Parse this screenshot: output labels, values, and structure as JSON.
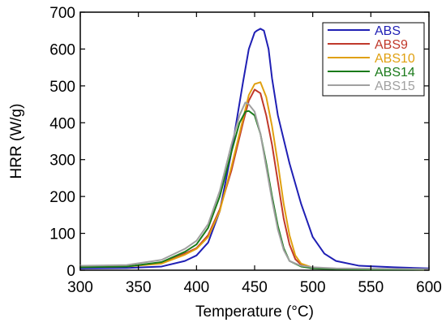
{
  "chart_data": {
    "type": "line",
    "title": "",
    "xlabel": "Temperature (°C)",
    "ylabel": "HRR (W/g)",
    "xlim": [
      300,
      600
    ],
    "ylim": [
      0,
      700
    ],
    "xticks": [
      "300",
      "350",
      "400",
      "450",
      "500",
      "550",
      "600"
    ],
    "yticks": [
      "0",
      "100",
      "200",
      "300",
      "400",
      "500",
      "600",
      "700"
    ],
    "grid": false,
    "legend_position": "top-right",
    "series": [
      {
        "name": "ABS",
        "color": "#1f1fb4",
        "points": [
          [
            300,
            5
          ],
          [
            340,
            6
          ],
          [
            370,
            10
          ],
          [
            390,
            25
          ],
          [
            400,
            40
          ],
          [
            410,
            75
          ],
          [
            420,
            160
          ],
          [
            430,
            320
          ],
          [
            440,
            510
          ],
          [
            445,
            600
          ],
          [
            450,
            645
          ],
          [
            452,
            650
          ],
          [
            455,
            655
          ],
          [
            458,
            650
          ],
          [
            462,
            600
          ],
          [
            465,
            520
          ],
          [
            470,
            420
          ],
          [
            480,
            290
          ],
          [
            490,
            180
          ],
          [
            500,
            90
          ],
          [
            510,
            45
          ],
          [
            520,
            25
          ],
          [
            540,
            12
          ],
          [
            570,
            8
          ],
          [
            600,
            5
          ]
        ]
      },
      {
        "name": "ABS9",
        "color": "#c0392b",
        "points": [
          [
            300,
            10
          ],
          [
            340,
            10
          ],
          [
            370,
            20
          ],
          [
            390,
            45
          ],
          [
            400,
            60
          ],
          [
            410,
            95
          ],
          [
            420,
            165
          ],
          [
            430,
            270
          ],
          [
            440,
            400
          ],
          [
            445,
            460
          ],
          [
            450,
            490
          ],
          [
            455,
            480
          ],
          [
            460,
            420
          ],
          [
            465,
            340
          ],
          [
            470,
            240
          ],
          [
            475,
            140
          ],
          [
            480,
            70
          ],
          [
            485,
            30
          ],
          [
            490,
            15
          ],
          [
            500,
            6
          ],
          [
            520,
            4
          ],
          [
            550,
            3
          ],
          [
            600,
            2
          ]
        ]
      },
      {
        "name": "ABS10",
        "color": "#e0a010",
        "points": [
          [
            300,
            9
          ],
          [
            340,
            10
          ],
          [
            370,
            18
          ],
          [
            390,
            42
          ],
          [
            400,
            58
          ],
          [
            410,
            90
          ],
          [
            420,
            160
          ],
          [
            430,
            280
          ],
          [
            440,
            410
          ],
          [
            445,
            475
          ],
          [
            450,
            505
          ],
          [
            455,
            510
          ],
          [
            460,
            470
          ],
          [
            465,
            390
          ],
          [
            470,
            290
          ],
          [
            475,
            180
          ],
          [
            480,
            95
          ],
          [
            485,
            40
          ],
          [
            490,
            18
          ],
          [
            500,
            7
          ],
          [
            520,
            4
          ],
          [
            550,
            3
          ],
          [
            600,
            2
          ]
        ]
      },
      {
        "name": "ABS14",
        "color": "#1a7a1a",
        "points": [
          [
            300,
            8
          ],
          [
            340,
            10
          ],
          [
            370,
            22
          ],
          [
            390,
            50
          ],
          [
            400,
            70
          ],
          [
            410,
            115
          ],
          [
            420,
            200
          ],
          [
            430,
            320
          ],
          [
            437,
            400
          ],
          [
            442,
            430
          ],
          [
            445,
            432
          ],
          [
            450,
            420
          ],
          [
            455,
            370
          ],
          [
            460,
            290
          ],
          [
            465,
            200
          ],
          [
            470,
            120
          ],
          [
            475,
            60
          ],
          [
            480,
            25
          ],
          [
            490,
            10
          ],
          [
            500,
            5
          ],
          [
            520,
            3
          ],
          [
            550,
            2
          ],
          [
            600,
            2
          ]
        ]
      },
      {
        "name": "ABS15",
        "color": "#a0a0a0",
        "points": [
          [
            300,
            12
          ],
          [
            340,
            14
          ],
          [
            370,
            28
          ],
          [
            390,
            58
          ],
          [
            400,
            80
          ],
          [
            410,
            125
          ],
          [
            420,
            215
          ],
          [
            430,
            340
          ],
          [
            437,
            420
          ],
          [
            442,
            455
          ],
          [
            445,
            450
          ],
          [
            450,
            430
          ],
          [
            455,
            370
          ],
          [
            460,
            280
          ],
          [
            465,
            190
          ],
          [
            470,
            110
          ],
          [
            475,
            55
          ],
          [
            480,
            25
          ],
          [
            490,
            12
          ],
          [
            500,
            8
          ],
          [
            520,
            5
          ],
          [
            550,
            4
          ],
          [
            600,
            3
          ]
        ]
      }
    ]
  }
}
